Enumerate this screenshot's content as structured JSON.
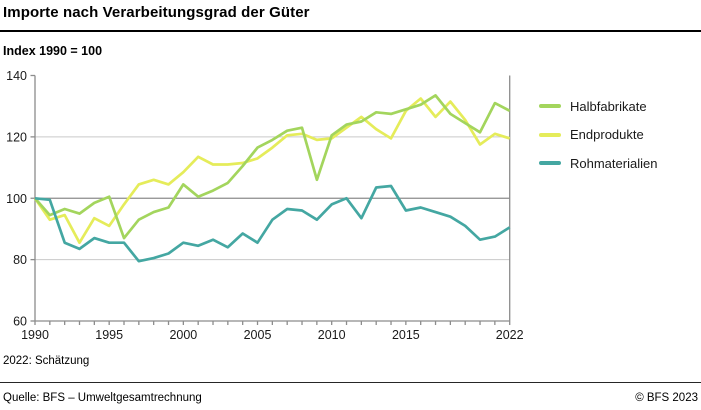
{
  "title": "Importe nach Verarbeitungsgrad der Güter",
  "subtitle": "Index 1990 = 100",
  "footnote": "2022: Schätzung",
  "source": "Quelle: BFS – Umweltgesamtrechnung",
  "copyright": "© BFS 2023",
  "chart_data": {
    "type": "line",
    "title": "Importe nach Verarbeitungsgrad der Güter",
    "subtitle": "Index 1990 = 100",
    "x": [
      1990,
      1991,
      1992,
      1993,
      1994,
      1995,
      1996,
      1997,
      1998,
      1999,
      2000,
      2001,
      2002,
      2003,
      2004,
      2005,
      2006,
      2007,
      2008,
      2009,
      2010,
      2011,
      2012,
      2013,
      2014,
      2015,
      2016,
      2017,
      2018,
      2019,
      2020,
      2021,
      2022
    ],
    "series": [
      {
        "name": "Halbfabrikate",
        "color": "#a3d55d",
        "values": [
          100,
          94.5,
          96.5,
          95,
          98.5,
          100.5,
          87,
          93,
          95.5,
          97,
          104.5,
          100.5,
          102.5,
          105,
          110.5,
          116.5,
          119,
          122,
          123,
          106,
          120.5,
          124,
          125,
          128,
          127.5,
          129,
          130.5,
          133.5,
          127.5,
          124.5,
          121.5,
          131,
          128.5
        ]
      },
      {
        "name": "Endprodukte",
        "color": "#e5ec5a",
        "values": [
          100,
          93,
          94.5,
          85.5,
          93.5,
          91,
          98,
          104.5,
          106,
          104.5,
          108.5,
          113.5,
          111,
          111,
          111.5,
          113,
          116.5,
          120.5,
          121,
          119,
          119.5,
          123,
          126.5,
          122.5,
          119.5,
          128.5,
          132.5,
          126.5,
          131.5,
          125.5,
          117.5,
          121,
          119.5
        ]
      },
      {
        "name": "Rohmaterialien",
        "color": "#44a7a2",
        "values": [
          100,
          99.5,
          85.5,
          83.5,
          87,
          85.5,
          85.5,
          79.5,
          80.5,
          82,
          85.5,
          84.5,
          86.5,
          84,
          88.5,
          85.5,
          93,
          96.5,
          96,
          93,
          98,
          100,
          93.5,
          103.5,
          104,
          96,
          97,
          95.5,
          94,
          91,
          86.5,
          87.5,
          90.5
        ]
      }
    ],
    "xlabel": "",
    "ylabel": "",
    "ylim": [
      60,
      140
    ],
    "y_ticks": [
      60,
      80,
      100,
      120,
      140
    ],
    "x_tick_labels": [
      1990,
      1995,
      2000,
      2005,
      2010,
      2015,
      2022
    ],
    "baseline_value": 100,
    "grid": true,
    "legend_position": "right"
  }
}
